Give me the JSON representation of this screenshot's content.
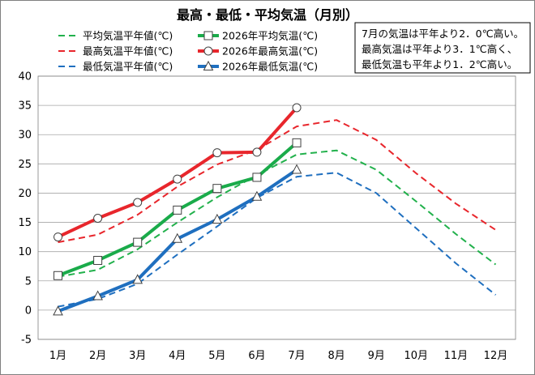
{
  "chart_data": {
    "type": "line",
    "title": "最高・最低・平均気温（月別）",
    "categories": [
      "1月",
      "2月",
      "3月",
      "4月",
      "5月",
      "6月",
      "7月",
      "8月",
      "9月",
      "10月",
      "11月",
      "12月"
    ],
    "ylim": [
      -5,
      40
    ],
    "yticks": [
      -5,
      0,
      5,
      10,
      15,
      20,
      25,
      30,
      35,
      40
    ],
    "grid": true,
    "series": [
      {
        "name": "平均気温平年値(℃)",
        "style": "dashed",
        "color": "#22b14c",
        "marker": "none",
        "values": [
          5.7,
          6.9,
          10.4,
          15.0,
          19.3,
          23.1,
          26.6,
          27.3,
          24.0,
          18.6,
          13.0,
          7.8
        ]
      },
      {
        "name": "最高気温平年値(℃)",
        "style": "dashed",
        "color": "#e8262c",
        "marker": "none",
        "values": [
          11.6,
          12.9,
          16.3,
          21.1,
          24.9,
          27.4,
          31.4,
          32.5,
          29.1,
          23.4,
          18.2,
          13.7
        ]
      },
      {
        "name": "最低気温平年値(℃)",
        "style": "dashed",
        "color": "#1f6fbf",
        "marker": "none",
        "values": [
          0.6,
          1.9,
          4.5,
          9.5,
          14.3,
          19.2,
          22.8,
          23.5,
          20.0,
          14.0,
          8.0,
          2.6
        ]
      },
      {
        "name": "2026年平均気温(℃)",
        "style": "solid",
        "color": "#1aab4a",
        "marker": "square",
        "values": [
          5.9,
          8.5,
          11.6,
          17.1,
          20.8,
          22.7,
          28.6,
          null,
          null,
          null,
          null,
          null
        ]
      },
      {
        "name": "2026年最高気温(℃)",
        "style": "solid",
        "color": "#e8262c",
        "marker": "circle",
        "values": [
          12.5,
          15.7,
          18.4,
          22.4,
          26.9,
          27.0,
          34.6,
          null,
          null,
          null,
          null,
          null
        ]
      },
      {
        "name": "2026年最低気温(℃)",
        "style": "solid",
        "color": "#1f6fbf",
        "marker": "triangle",
        "values": [
          -0.2,
          2.4,
          5.2,
          12.2,
          15.5,
          19.4,
          24.0,
          null,
          null,
          null,
          null,
          null
        ]
      }
    ],
    "legend_position": "top-left",
    "legend_order": [
      0,
      3,
      1,
      4,
      2,
      5
    ],
    "annotation": [
      "7月の気温は平年より2．0℃高い。",
      "最高気温は平年より3．1℃高く、",
      "最低気温も平年より1．2℃高い。"
    ],
    "annotation_position": "top-right"
  }
}
